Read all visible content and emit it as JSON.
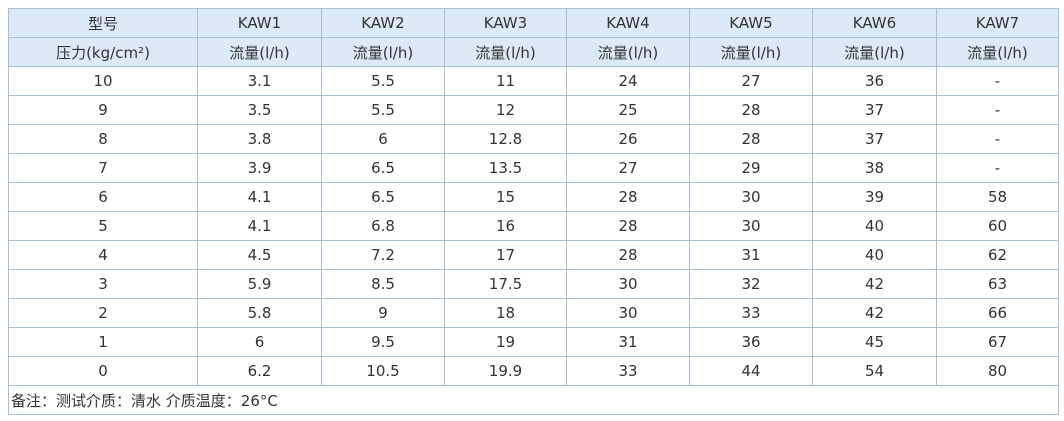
{
  "table": {
    "header": [
      [
        "型号",
        "KAW1",
        "KAW2",
        "KAW3",
        "KAW4",
        "KAW5",
        "KAW6",
        "KAW7"
      ],
      [
        "压力(kg/cm²)",
        "流量(l/h)",
        "流量(l/h)",
        "流量(l/h)",
        "流量(l/h)",
        "流量(l/h)",
        "流量(l/h)",
        "流量(l/h)"
      ]
    ],
    "rows": [
      [
        10,
        3.1,
        5.5,
        11,
        24,
        27,
        36,
        "-"
      ],
      [
        9,
        3.5,
        5.5,
        12,
        25,
        28,
        37,
        "-"
      ],
      [
        8,
        3.8,
        6,
        12.8,
        26,
        28,
        37,
        "-"
      ],
      [
        7,
        3.9,
        6.5,
        13.5,
        27,
        29,
        38,
        "-"
      ],
      [
        6,
        4.1,
        6.5,
        15,
        28,
        30,
        39,
        58
      ],
      [
        5,
        4.1,
        6.8,
        16,
        28,
        30,
        40,
        60
      ],
      [
        4,
        4.5,
        7.2,
        17,
        28,
        31,
        40,
        62
      ],
      [
        3,
        5.9,
        8.5,
        17.5,
        30,
        32,
        42,
        63
      ],
      [
        2,
        5.8,
        9,
        18,
        30,
        33,
        42,
        66
      ],
      [
        1,
        6,
        9.5,
        19,
        31,
        36,
        45,
        67
      ],
      [
        0,
        6.2,
        10.5,
        19.9,
        33,
        44,
        54,
        80
      ]
    ],
    "note": "备注：测试介质：清水 介质温度：26°C"
  }
}
